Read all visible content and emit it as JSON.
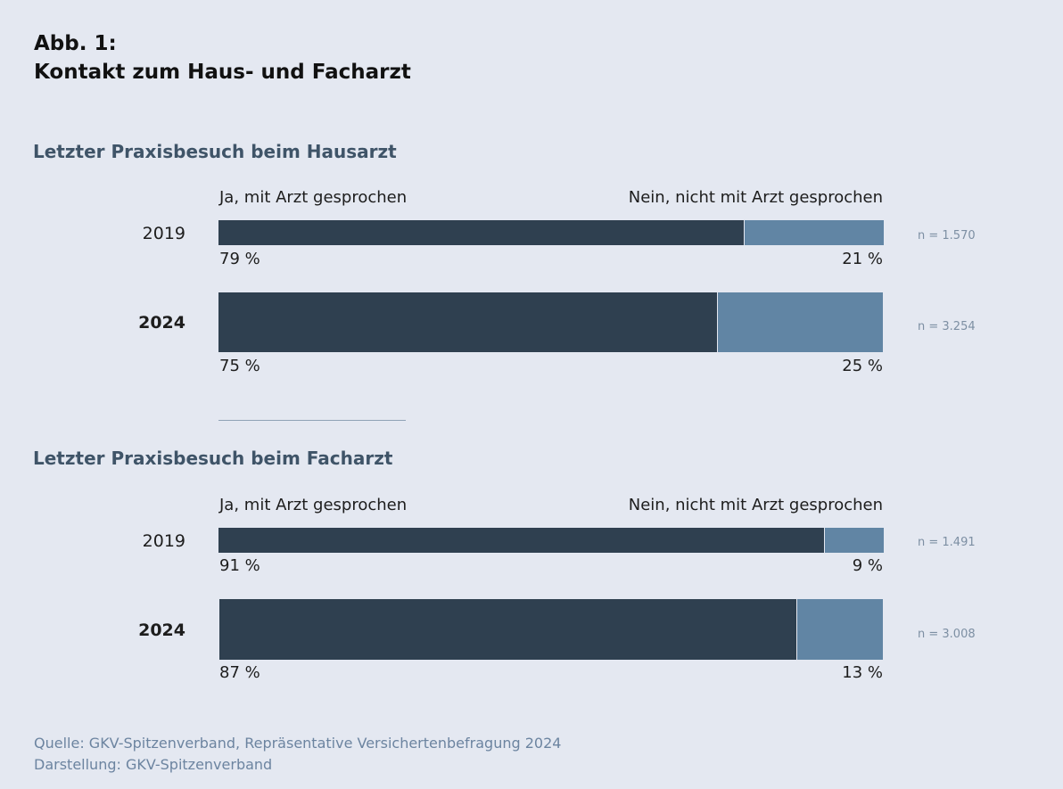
{
  "figure": {
    "title_line1": "Abb. 1:",
    "title_line2": "Kontakt zum Haus- und Facharzt"
  },
  "colors": {
    "ja": "#2f4050",
    "nein": "#6185a4",
    "background": "#e4e8f1"
  },
  "chart_data": [
    {
      "type": "bar",
      "orientation": "horizontal-stacked-100",
      "title": "Letzter Praxisbesuch beim Hausarzt",
      "legend": [
        "Ja, mit Arzt gesprochen",
        "Nein, nicht mit Arzt gesprochen"
      ],
      "categories": [
        "2019",
        "2024"
      ],
      "series": [
        {
          "name": "Ja, mit Arzt gesprochen",
          "values": [
            79,
            75
          ],
          "labels": [
            "79 %",
            "75 %"
          ]
        },
        {
          "name": "Nein, nicht mit Arzt gesprochen",
          "values": [
            21,
            25
          ],
          "labels": [
            "21 %",
            "25 %"
          ]
        }
      ],
      "n_labels": [
        "n = 1.570",
        "n = 3.254"
      ]
    },
    {
      "type": "bar",
      "orientation": "horizontal-stacked-100",
      "title": "Letzter Praxisbesuch beim Facharzt",
      "legend": [
        "Ja, mit Arzt gesprochen",
        "Nein, nicht mit Arzt gesprochen"
      ],
      "categories": [
        "2019",
        "2024"
      ],
      "series": [
        {
          "name": "Ja, mit Arzt gesprochen",
          "values": [
            91,
            87
          ],
          "labels": [
            "91 %",
            "87 %"
          ]
        },
        {
          "name": "Nein, nicht mit Arzt gesprochen",
          "values": [
            9,
            13
          ],
          "labels": [
            "9 %",
            "13 %"
          ]
        }
      ],
      "n_labels": [
        "n = 1.491",
        "n = 3.008"
      ]
    }
  ],
  "source": {
    "line1": "Quelle: GKV-Spitzenverband, Repräsentative Versichertenbefragung 2024",
    "line2": "Darstellung: GKV-Spitzenverband"
  }
}
